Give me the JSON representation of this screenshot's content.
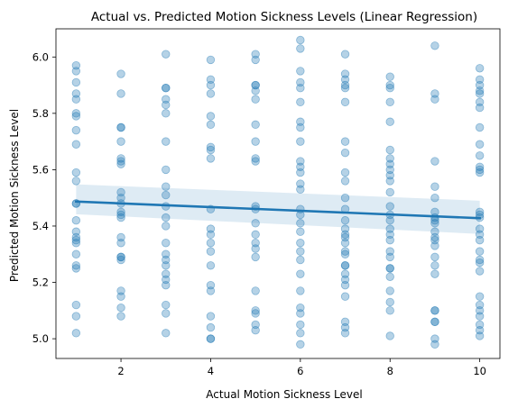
{
  "chart_data": {
    "type": "scatter",
    "title": "Actual vs. Predicted Motion Sickness Levels (Linear Regression)",
    "xlabel": "Actual Motion Sickness Level",
    "ylabel": "Predicted Motion Sickness Level",
    "xlim": [
      0.55,
      10.45
    ],
    "ylim": [
      4.93,
      6.1
    ],
    "xticks": [
      2,
      4,
      6,
      8,
      10
    ],
    "yticks": [
      5.0,
      5.2,
      5.4,
      5.6,
      5.8,
      6.0
    ],
    "xtick_labels": [
      "2",
      "4",
      "6",
      "8",
      "10"
    ],
    "ytick_labels": [
      "5.0",
      "5.2",
      "5.4",
      "5.6",
      "5.8",
      "6.0"
    ],
    "grid": false,
    "colors": {
      "points": "#1f77b4",
      "line": "#1f77b4",
      "band": "#1f77b4"
    },
    "regression": {
      "x": [
        1,
        10
      ],
      "y": [
        5.487,
        5.428
      ],
      "ci_lower": [
        5.442,
        5.372
      ],
      "ci_upper": [
        5.548,
        5.49
      ]
    },
    "points": [
      {
        "x": 1,
        "y": [
          5.97,
          5.95,
          5.91,
          5.87,
          5.85,
          5.8,
          5.79,
          5.74,
          5.69,
          5.59,
          5.56,
          5.48,
          5.48,
          5.42,
          5.38,
          5.36,
          5.35,
          5.34,
          5.3,
          5.26,
          5.25,
          5.12,
          5.08,
          5.02
        ]
      },
      {
        "x": 2,
        "y": [
          5.94,
          5.87,
          5.75,
          5.75,
          5.7,
          5.64,
          5.63,
          5.62,
          5.52,
          5.5,
          5.48,
          5.45,
          5.44,
          5.43,
          5.36,
          5.34,
          5.29,
          5.29,
          5.28,
          5.17,
          5.15,
          5.11,
          5.08
        ]
      },
      {
        "x": 3,
        "y": [
          6.01,
          5.89,
          5.89,
          5.85,
          5.83,
          5.8,
          5.7,
          5.6,
          5.54,
          5.51,
          5.47,
          5.43,
          5.4,
          5.34,
          5.3,
          5.28,
          5.26,
          5.23,
          5.21,
          5.19,
          5.12,
          5.09,
          5.02
        ]
      },
      {
        "x": 4,
        "y": [
          5.99,
          5.92,
          5.9,
          5.87,
          5.79,
          5.76,
          5.68,
          5.67,
          5.64,
          5.46,
          5.39,
          5.37,
          5.34,
          5.31,
          5.26,
          5.19,
          5.17,
          5.08,
          5.04,
          5.0,
          5.0
        ]
      },
      {
        "x": 5,
        "y": [
          6.01,
          5.99,
          5.9,
          5.9,
          5.88,
          5.85,
          5.76,
          5.7,
          5.64,
          5.63,
          5.47,
          5.46,
          5.41,
          5.37,
          5.34,
          5.32,
          5.29,
          5.17,
          5.1,
          5.09,
          5.05,
          5.03
        ]
      },
      {
        "x": 6,
        "y": [
          6.06,
          6.03,
          5.95,
          5.91,
          5.89,
          5.84,
          5.77,
          5.75,
          5.7,
          5.63,
          5.61,
          5.59,
          5.55,
          5.53,
          5.46,
          5.44,
          5.41,
          5.38,
          5.34,
          5.31,
          5.28,
          5.23,
          5.17,
          5.11,
          5.09,
          5.05,
          5.02,
          4.98
        ]
      },
      {
        "x": 7,
        "y": [
          6.01,
          5.94,
          5.92,
          5.9,
          5.89,
          5.84,
          5.7,
          5.66,
          5.59,
          5.56,
          5.5,
          5.46,
          5.42,
          5.39,
          5.37,
          5.36,
          5.34,
          5.31,
          5.3,
          5.26,
          5.26,
          5.23,
          5.21,
          5.19,
          5.15,
          5.06,
          5.04,
          5.02
        ]
      },
      {
        "x": 8,
        "y": [
          5.93,
          5.9,
          5.89,
          5.84,
          5.77,
          5.67,
          5.64,
          5.62,
          5.6,
          5.58,
          5.56,
          5.52,
          5.47,
          5.44,
          5.42,
          5.39,
          5.37,
          5.35,
          5.31,
          5.29,
          5.25,
          5.25,
          5.22,
          5.17,
          5.13,
          5.1,
          5.01
        ]
      },
      {
        "x": 9,
        "y": [
          6.04,
          5.87,
          5.85,
          5.63,
          5.54,
          5.5,
          5.45,
          5.43,
          5.42,
          5.41,
          5.38,
          5.36,
          5.35,
          5.33,
          5.29,
          5.26,
          5.23,
          5.1,
          5.1,
          5.06,
          5.06,
          5.0,
          4.98
        ]
      },
      {
        "x": 10,
        "y": [
          5.96,
          5.92,
          5.9,
          5.88,
          5.87,
          5.84,
          5.82,
          5.75,
          5.69,
          5.65,
          5.61,
          5.6,
          5.59,
          5.45,
          5.44,
          5.43,
          5.39,
          5.37,
          5.35,
          5.31,
          5.28,
          5.27,
          5.24,
          5.15,
          5.12,
          5.1,
          5.08,
          5.05,
          5.03,
          5.01
        ]
      }
    ]
  }
}
